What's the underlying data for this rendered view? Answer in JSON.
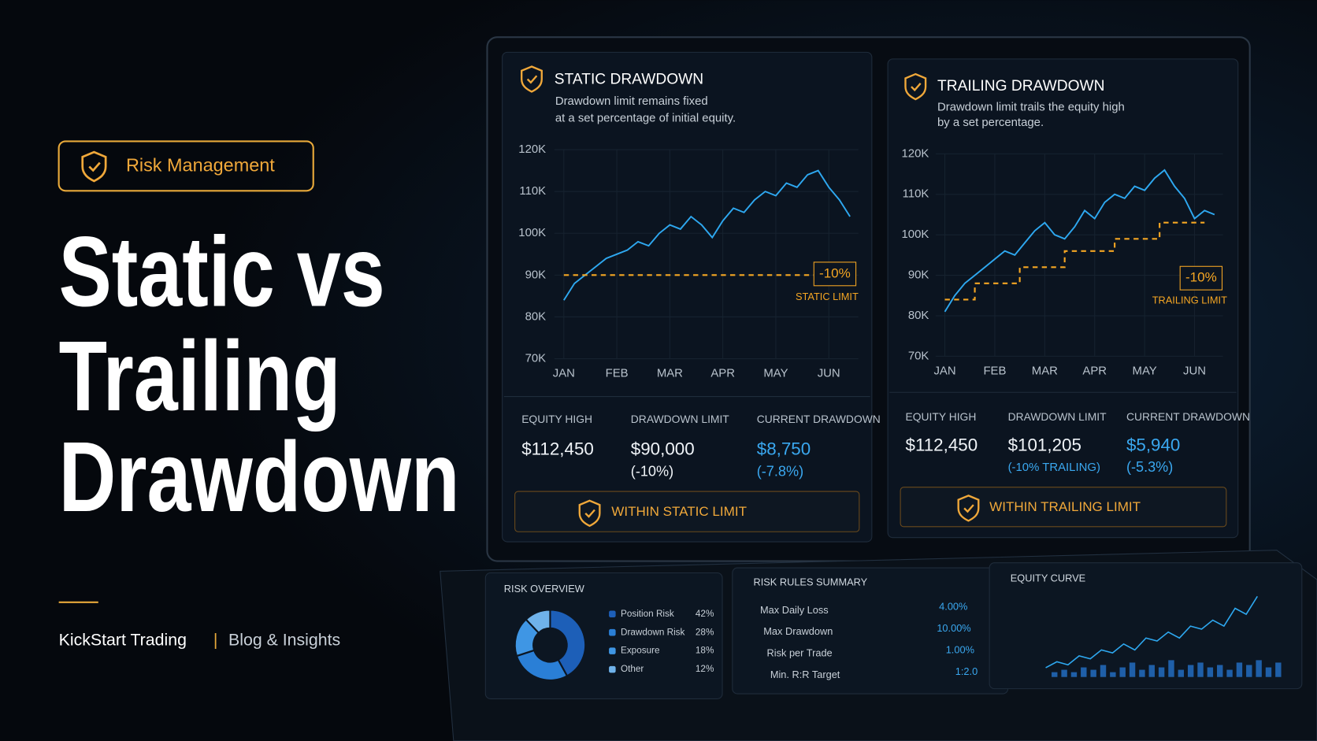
{
  "hero": {
    "badge": "Risk Management",
    "title": [
      "Static vs",
      "Trailing",
      "Drawdown"
    ],
    "brand": "KickStart Trading",
    "separator": "|",
    "section": "Blog & Insights"
  },
  "chart_data": [
    {
      "type": "line",
      "title": "STATIC DRAWDOWN",
      "subtitle": [
        "Drawdown limit remains fixed",
        "at a set percentage of initial equity."
      ],
      "xlim": [
        -0.1,
        5.4
      ],
      "ylim": [
        70,
        120
      ],
      "xticks": [
        {
          "value": 0,
          "label": "JAN"
        },
        {
          "value": 1,
          "label": "FEB"
        },
        {
          "value": 2,
          "label": "MAR"
        },
        {
          "value": 3,
          "label": "APR"
        },
        {
          "value": 4,
          "label": "MAY"
        },
        {
          "value": 5,
          "label": "JUN"
        }
      ],
      "yticks": [
        {
          "value": 70,
          "label": "70K"
        },
        {
          "value": 80,
          "label": "80K"
        },
        {
          "value": 90,
          "label": "90K"
        },
        {
          "value": 100,
          "label": "100K"
        },
        {
          "value": 110,
          "label": "110K"
        },
        {
          "value": 120,
          "label": "120K"
        }
      ],
      "grid": true,
      "series": [
        {
          "color": "#2ea8f0",
          "x": [
            0,
            0.2,
            0.4,
            0.6,
            0.8,
            1,
            1.2,
            1.4,
            1.6,
            1.8,
            2,
            2.2,
            2.4,
            2.6,
            2.8,
            3,
            3.2,
            3.4,
            3.6,
            3.8,
            4,
            4.2,
            4.4,
            4.6,
            4.8,
            5,
            5.2,
            5.4
          ],
          "values": [
            84,
            88,
            90,
            92,
            94,
            95,
            96,
            98,
            97,
            100,
            102,
            101,
            104,
            102,
            99,
            103,
            106,
            105,
            108,
            110,
            109,
            112,
            111,
            114,
            115,
            111,
            108,
            104
          ]
        },
        {
          "color": "#f5a623",
          "dashed": true,
          "x": [
            0,
            4.8
          ],
          "values": [
            90,
            90
          ]
        }
      ],
      "annotations": {
        "badge": "-10%",
        "label": "STATIC LIMIT"
      }
    },
    {
      "type": "line",
      "title": "TRAILING DRAWDOWN",
      "subtitle": [
        "Drawdown limit trails the equity high",
        "by a set percentage."
      ],
      "xlim": [
        -0.1,
        5.4
      ],
      "ylim": [
        70,
        120
      ],
      "xticks": [
        {
          "value": 0,
          "label": "JAN"
        },
        {
          "value": 1,
          "label": "FEB"
        },
        {
          "value": 2,
          "label": "MAR"
        },
        {
          "value": 3,
          "label": "APR"
        },
        {
          "value": 4,
          "label": "MAY"
        },
        {
          "value": 5,
          "label": "JUN"
        }
      ],
      "yticks": [
        {
          "value": 70,
          "label": "70K"
        },
        {
          "value": 80,
          "label": "80K"
        },
        {
          "value": 90,
          "label": "90K"
        },
        {
          "value": 100,
          "label": "100K"
        },
        {
          "value": 110,
          "label": "110K"
        },
        {
          "value": 120,
          "label": "120K"
        }
      ],
      "grid": true,
      "series": [
        {
          "color": "#2ea8f0",
          "x": [
            0,
            0.2,
            0.4,
            0.6,
            0.8,
            1,
            1.2,
            1.4,
            1.6,
            1.8,
            2,
            2.2,
            2.4,
            2.6,
            2.8,
            3,
            3.2,
            3.4,
            3.6,
            3.8,
            4,
            4.2,
            4.4,
            4.6,
            4.8,
            5,
            5.2,
            5.4
          ],
          "values": [
            81,
            85,
            88,
            90,
            92,
            94,
            96,
            95,
            98,
            101,
            103,
            100,
            99,
            102,
            106,
            104,
            108,
            110,
            109,
            112,
            111,
            114,
            116,
            112,
            109,
            104,
            106,
            105
          ]
        },
        {
          "color": "#f5a623",
          "dashed": true,
          "x": [
            0,
            0.6,
            0.6,
            1.5,
            1.5,
            2.4,
            2.4,
            3.4,
            3.4,
            4.3,
            4.3,
            5.2
          ],
          "values": [
            84,
            84,
            88,
            88,
            92,
            92,
            96,
            96,
            99,
            99,
            103,
            103
          ]
        }
      ],
      "annotations": {
        "badge": "-10%",
        "label": "TRAILING LIMIT"
      }
    },
    {
      "type": "pie",
      "title": "RISK OVERVIEW",
      "categories": [
        "Position Risk",
        "Drawdown Risk",
        "Exposure",
        "Other"
      ],
      "values": [
        42,
        28,
        18,
        12
      ],
      "value_labels": [
        "42%",
        "28%",
        "18%",
        "12%"
      ],
      "colors": [
        "#1d5fb8",
        "#2a7fd6",
        "#3f96e4",
        "#6fb2ea"
      ]
    },
    {
      "type": "mini-line",
      "title": "EQUITY CURVE",
      "series": [
        {
          "type": "line",
          "color": "#2ea8f0",
          "values": [
            2,
            3,
            2.5,
            4,
            3.5,
            5,
            4.5,
            6,
            5,
            7,
            6.5,
            8,
            7,
            9,
            8.5,
            10,
            9,
            12,
            11,
            14
          ]
        },
        {
          "type": "bar",
          "color": "#1f5fa8",
          "values": [
            2,
            3,
            2,
            4,
            3,
            5,
            2,
            4,
            6,
            3,
            5,
            4,
            7,
            3,
            5,
            6,
            4,
            5,
            3,
            6,
            5,
            7,
            4,
            6
          ]
        }
      ]
    }
  ],
  "panels": [
    {
      "stats": [
        {
          "label": "EQUITY HIGH",
          "value": "$112,450"
        },
        {
          "label": "DRAWDOWN LIMIT",
          "value": "$90,000",
          "note": "(-10%)"
        },
        {
          "label": "CURRENT DRAWDOWN",
          "value": "$8,750",
          "note": "(-7.8%)"
        }
      ],
      "status": "WITHIN STATIC LIMIT"
    },
    {
      "stats": [
        {
          "label": "EQUITY HIGH",
          "value": "$112,450"
        },
        {
          "label": "DRAWDOWN LIMIT",
          "value": "$101,205",
          "note": "(-10% TRAILING)"
        },
        {
          "label": "CURRENT DRAWDOWN",
          "value": "$5,940",
          "note": "(-5.3%)"
        }
      ],
      "status": "WITHIN TRAILING LIMIT"
    }
  ],
  "risk_rules": {
    "title": "RISK RULES SUMMARY",
    "rows": [
      [
        "Max Daily Loss",
        "4.00%"
      ],
      [
        "Max Drawdown",
        "10.00%"
      ],
      [
        "Risk per Trade",
        "1.00%"
      ],
      [
        "Min. R:R Target",
        "1:2.0"
      ]
    ]
  }
}
